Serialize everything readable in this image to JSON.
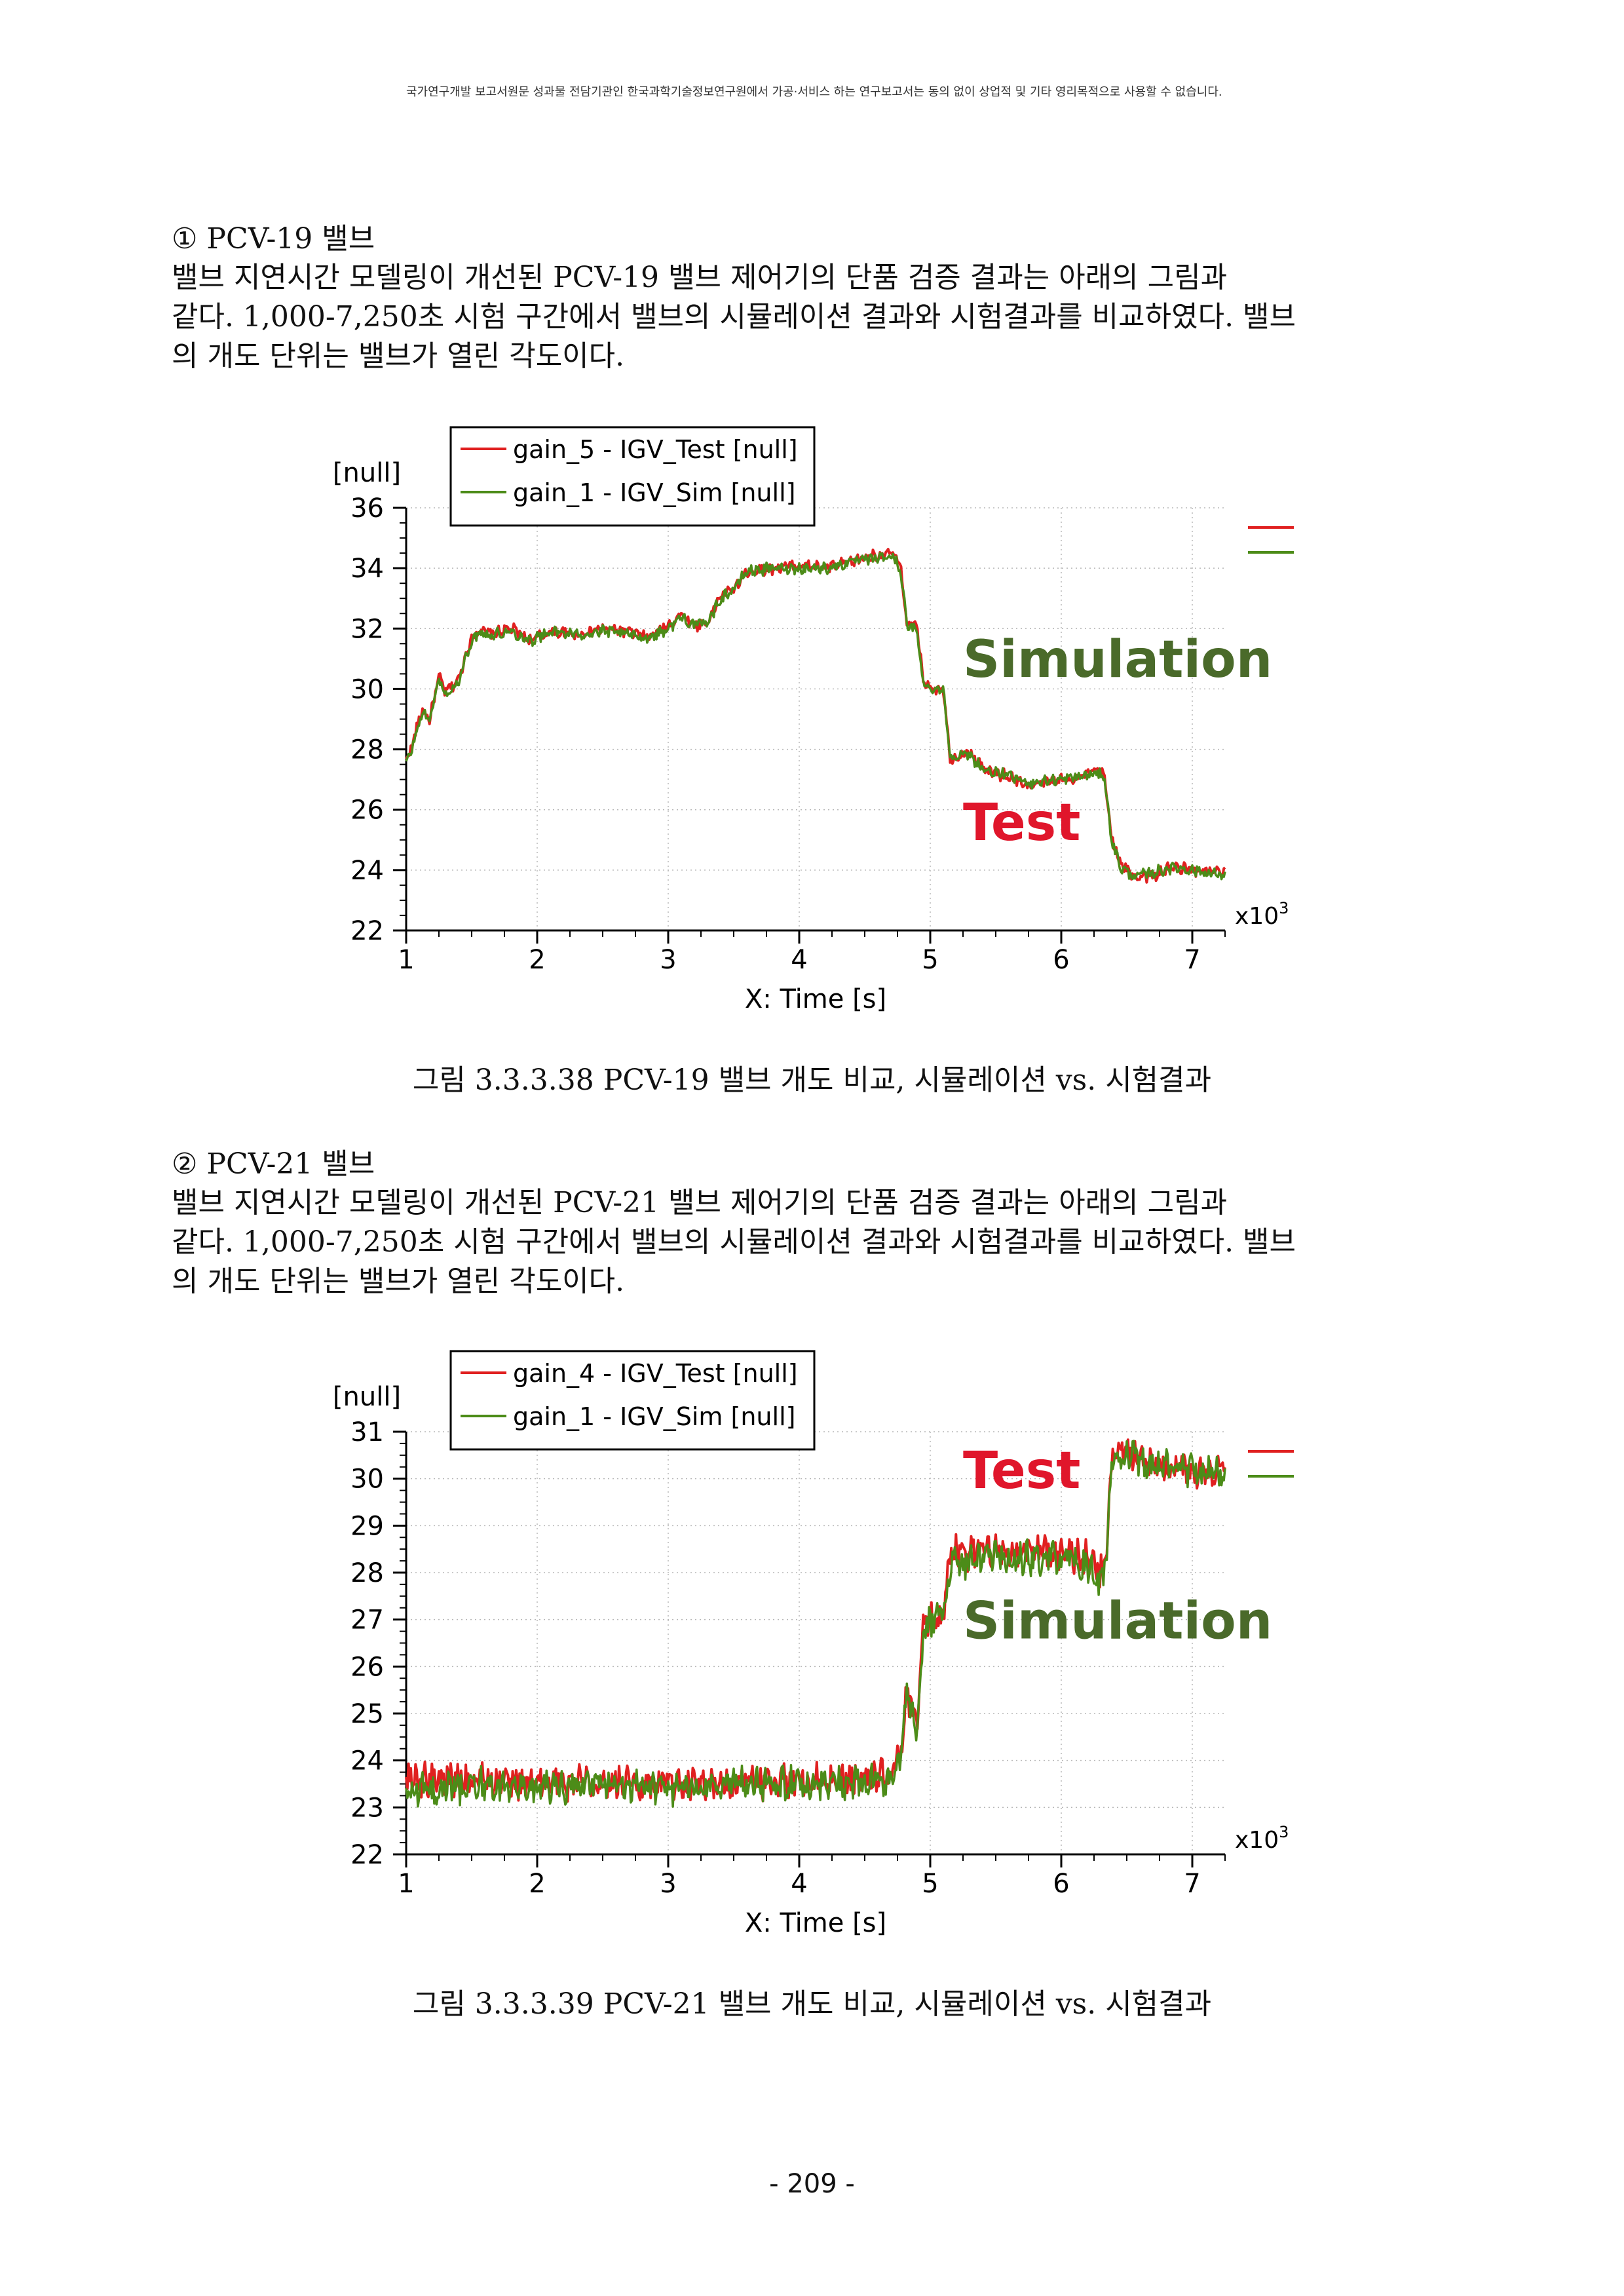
{
  "header_notice": "국가연구개발 보고서원문 성과물 전담기관인 한국과학기술정보연구원에서 가공·서비스 하는 연구보고서는 동의 없이 상업적 및 기타 영리목적으로 사용할 수 없습니다.",
  "sections": [
    {
      "heading": "① PCV-19 밸브",
      "paragraph": [
        "밸브 지연시간 모델링이 개선된 PCV-19 밸브 제어기의 단품 검증 결과는 아래의 그림과",
        "같다. 1,000-7,250초 시험 구간에서 밸브의 시뮬레이션 결과와 시험결과를 비교하였다. 밸브",
        "의 개도 단위는 밸브가 열린 각도이다."
      ],
      "caption": "그림 3.3.3.38 PCV-19 밸브 개도 비교, 시뮬레이션 vs. 시험결과"
    },
    {
      "heading": "② PCV-21 밸브",
      "paragraph": [
        "밸브 지연시간 모델링이 개선된 PCV-21 밸브 제어기의 단품 검증 결과는 아래의 그림과",
        "같다. 1,000-7,250초 시험 구간에서 밸브의 시뮬레이션 결과와 시험결과를 비교하였다. 밸브",
        "의 개도 단위는 밸브가 열린 각도이다."
      ],
      "caption": "그림 3.3.3.39 PCV-21 밸브 개도 비교, 시뮬레이션 vs. 시험결과"
    }
  ],
  "page_number": "- 209 -",
  "chart_data": [
    {
      "type": "line",
      "ylabel": "[null]",
      "xlabel": "X: Time [s]",
      "x_multiplier": "x10",
      "x_multiplier_exp": "3",
      "xlim": [
        1,
        7.25
      ],
      "ylim": [
        22,
        36
      ],
      "xticks": [
        1,
        2,
        3,
        4,
        5,
        6,
        7
      ],
      "yticks": [
        22,
        24,
        26,
        28,
        30,
        32,
        34,
        36
      ],
      "grid": true,
      "legend_position": "top-left",
      "annotations": [
        {
          "text": "Simulation",
          "color": "#4a6a2a",
          "x": 5.25,
          "y": 30.4
        },
        {
          "text": "Test",
          "color": "#e0162b",
          "x": 5.25,
          "y": 25.0
        }
      ],
      "series": [
        {
          "name": "gain_5 - IGV_Test [null]",
          "color": "#e02020",
          "noise": 0.16,
          "points": [
            [
              1.0,
              27.6
            ],
            [
              1.05,
              28.2
            ],
            [
              1.12,
              29.3
            ],
            [
              1.18,
              29.0
            ],
            [
              1.25,
              30.4
            ],
            [
              1.3,
              29.9
            ],
            [
              1.4,
              30.3
            ],
            [
              1.48,
              31.5
            ],
            [
              1.55,
              32.0
            ],
            [
              1.65,
              31.8
            ],
            [
              1.8,
              32.0
            ],
            [
              1.95,
              31.6
            ],
            [
              2.1,
              31.9
            ],
            [
              2.3,
              31.8
            ],
            [
              2.5,
              32.0
            ],
            [
              2.7,
              31.9
            ],
            [
              2.85,
              31.7
            ],
            [
              3.0,
              32.1
            ],
            [
              3.1,
              32.5
            ],
            [
              3.2,
              32.1
            ],
            [
              3.3,
              32.2
            ],
            [
              3.4,
              33.1
            ],
            [
              3.5,
              33.3
            ],
            [
              3.6,
              33.9
            ],
            [
              3.8,
              34.0
            ],
            [
              4.0,
              34.1
            ],
            [
              4.2,
              34.0
            ],
            [
              4.4,
              34.2
            ],
            [
              4.55,
              34.4
            ],
            [
              4.72,
              34.5
            ],
            [
              4.78,
              33.9
            ],
            [
              4.82,
              32.2
            ],
            [
              4.9,
              32.0
            ],
            [
              4.95,
              30.2
            ],
            [
              5.05,
              30.0
            ],
            [
              5.1,
              30.1
            ],
            [
              5.15,
              27.7
            ],
            [
              5.3,
              27.9
            ],
            [
              5.42,
              27.3
            ],
            [
              5.6,
              27.1
            ],
            [
              5.75,
              26.8
            ],
            [
              6.0,
              27.0
            ],
            [
              6.15,
              27.1
            ],
            [
              6.28,
              27.3
            ],
            [
              6.33,
              27.1
            ],
            [
              6.38,
              25.2
            ],
            [
              6.45,
              24.2
            ],
            [
              6.55,
              23.8
            ],
            [
              6.7,
              23.8
            ],
            [
              6.85,
              24.1
            ],
            [
              7.0,
              24.0
            ],
            [
              7.25,
              23.9
            ]
          ]
        },
        {
          "name": "gain_1 - IGV_Sim [null]",
          "color": "#4c8c18",
          "noise": 0.16,
          "points": [
            [
              1.0,
              27.5
            ],
            [
              1.05,
              28.1
            ],
            [
              1.12,
              29.2
            ],
            [
              1.18,
              29.0
            ],
            [
              1.25,
              30.3
            ],
            [
              1.3,
              29.8
            ],
            [
              1.4,
              30.2
            ],
            [
              1.48,
              31.4
            ],
            [
              1.55,
              31.9
            ],
            [
              1.65,
              31.8
            ],
            [
              1.8,
              31.9
            ],
            [
              1.95,
              31.6
            ],
            [
              2.1,
              31.9
            ],
            [
              2.3,
              31.8
            ],
            [
              2.5,
              31.9
            ],
            [
              2.7,
              31.8
            ],
            [
              2.85,
              31.7
            ],
            [
              3.0,
              32.0
            ],
            [
              3.1,
              32.4
            ],
            [
              3.2,
              32.1
            ],
            [
              3.3,
              32.2
            ],
            [
              3.4,
              33.0
            ],
            [
              3.5,
              33.3
            ],
            [
              3.6,
              33.9
            ],
            [
              3.8,
              34.0
            ],
            [
              4.0,
              34.0
            ],
            [
              4.2,
              34.0
            ],
            [
              4.4,
              34.2
            ],
            [
              4.55,
              34.3
            ],
            [
              4.72,
              34.4
            ],
            [
              4.78,
              33.8
            ],
            [
              4.82,
              32.1
            ],
            [
              4.9,
              31.9
            ],
            [
              4.95,
              30.1
            ],
            [
              5.05,
              30.0
            ],
            [
              5.1,
              30.0
            ],
            [
              5.15,
              27.8
            ],
            [
              5.3,
              27.8
            ],
            [
              5.42,
              27.3
            ],
            [
              5.6,
              27.1
            ],
            [
              5.75,
              26.9
            ],
            [
              6.0,
              27.0
            ],
            [
              6.15,
              27.1
            ],
            [
              6.28,
              27.2
            ],
            [
              6.33,
              27.1
            ],
            [
              6.38,
              25.1
            ],
            [
              6.45,
              24.1
            ],
            [
              6.55,
              23.8
            ],
            [
              6.7,
              23.9
            ],
            [
              6.85,
              24.1
            ],
            [
              7.0,
              24.0
            ],
            [
              7.25,
              23.8
            ]
          ]
        }
      ]
    },
    {
      "type": "line",
      "ylabel": "[null]",
      "xlabel": "X: Time [s]",
      "x_multiplier": "x10",
      "x_multiplier_exp": "3",
      "xlim": [
        1,
        7.25
      ],
      "ylim": [
        22,
        31
      ],
      "xticks": [
        1,
        2,
        3,
        4,
        5,
        6,
        7
      ],
      "yticks": [
        22,
        23,
        24,
        25,
        26,
        27,
        28,
        29,
        30,
        31
      ],
      "grid": true,
      "legend_position": "top-left",
      "annotations": [
        {
          "text": "Test",
          "color": "#e0162b",
          "x": 5.25,
          "y": 29.8
        },
        {
          "text": "Simulation",
          "color": "#4a6a2a",
          "x": 5.25,
          "y": 26.6
        }
      ],
      "series": [
        {
          "name": "gain_4 - IGV_Test [null]",
          "color": "#e02020",
          "noise": 0.3,
          "points": [
            [
              1.0,
              23.6
            ],
            [
              1.5,
              23.6
            ],
            [
              2.0,
              23.5
            ],
            [
              2.5,
              23.6
            ],
            [
              3.0,
              23.5
            ],
            [
              3.5,
              23.5
            ],
            [
              4.0,
              23.6
            ],
            [
              4.5,
              23.6
            ],
            [
              4.7,
              23.7
            ],
            [
              4.78,
              24.1
            ],
            [
              4.82,
              25.4
            ],
            [
              4.9,
              24.8
            ],
            [
              4.95,
              26.9
            ],
            [
              5.05,
              27.0
            ],
            [
              5.1,
              27.2
            ],
            [
              5.15,
              28.4
            ],
            [
              5.5,
              28.5
            ],
            [
              6.0,
              28.4
            ],
            [
              6.2,
              28.3
            ],
            [
              6.3,
              28.0
            ],
            [
              6.35,
              28.5
            ],
            [
              6.38,
              30.4
            ],
            [
              6.45,
              30.6
            ],
            [
              6.7,
              30.3
            ],
            [
              7.0,
              30.2
            ],
            [
              7.25,
              30.1
            ]
          ]
        },
        {
          "name": "gain_1 - IGV_Sim [null]",
          "color": "#4c8c18",
          "noise": 0.3,
          "points": [
            [
              1.0,
              23.3
            ],
            [
              1.5,
              23.5
            ],
            [
              2.0,
              23.4
            ],
            [
              2.5,
              23.5
            ],
            [
              3.0,
              23.4
            ],
            [
              3.5,
              23.5
            ],
            [
              4.0,
              23.5
            ],
            [
              4.5,
              23.5
            ],
            [
              4.7,
              23.6
            ],
            [
              4.78,
              24.0
            ],
            [
              4.82,
              25.5
            ],
            [
              4.9,
              24.7
            ],
            [
              4.95,
              26.8
            ],
            [
              5.05,
              27.0
            ],
            [
              5.1,
              27.1
            ],
            [
              5.15,
              28.2
            ],
            [
              5.5,
              28.3
            ],
            [
              6.0,
              28.3
            ],
            [
              6.2,
              28.1
            ],
            [
              6.3,
              27.8
            ],
            [
              6.35,
              28.3
            ],
            [
              6.38,
              30.3
            ],
            [
              6.45,
              30.5
            ],
            [
              6.7,
              30.3
            ],
            [
              7.0,
              30.2
            ],
            [
              7.25,
              30.1
            ]
          ]
        }
      ]
    }
  ]
}
